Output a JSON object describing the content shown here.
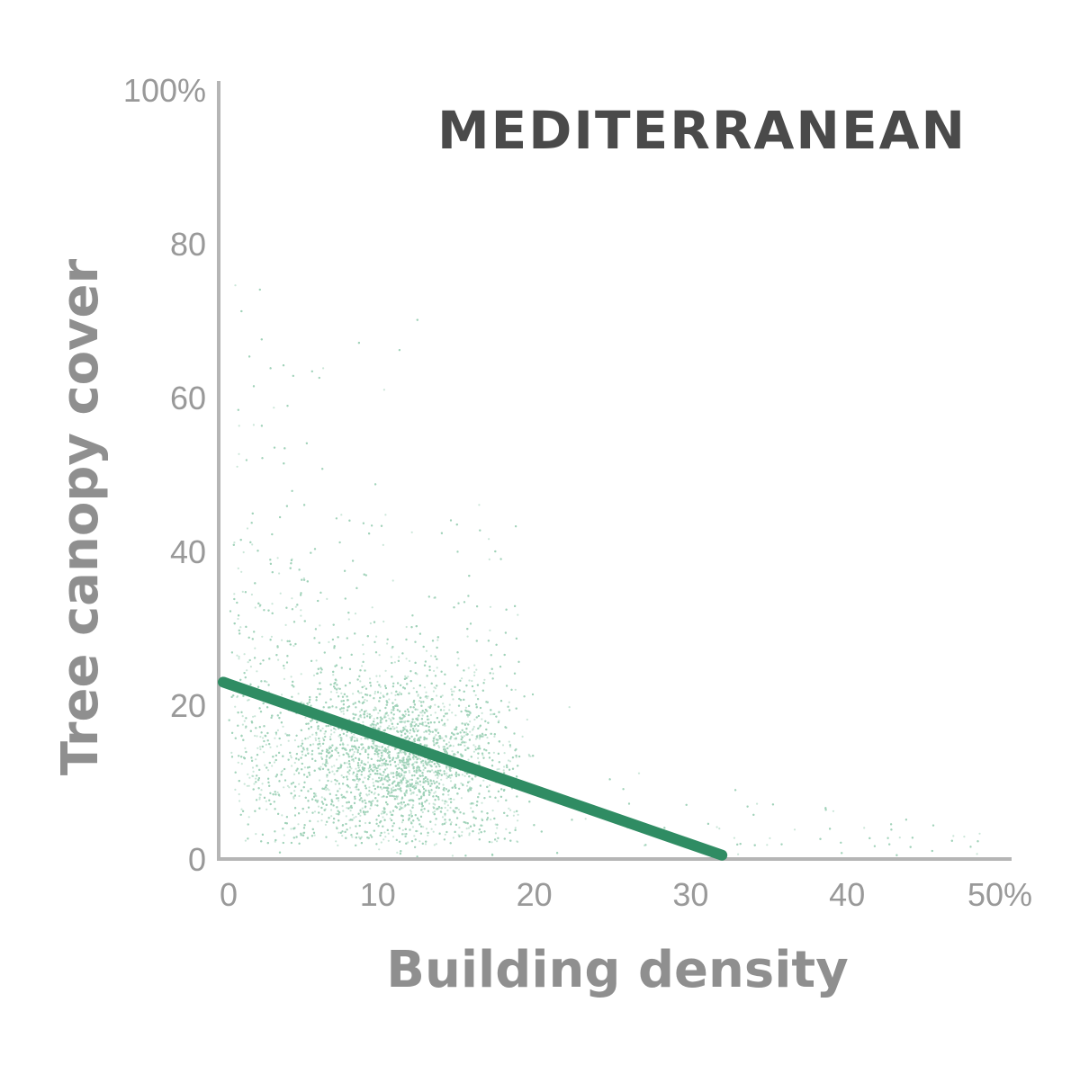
{
  "chart_data": {
    "type": "scatter",
    "title": "MEDITERRANEAN",
    "xlabel": "Building density",
    "ylabel": "Tree canopy cover",
    "xlim": [
      0,
      50
    ],
    "ylim": [
      0,
      100
    ],
    "x_ticks": [
      "0",
      "10",
      "20",
      "30",
      "40",
      "50%"
    ],
    "y_ticks": [
      "0",
      "20",
      "40",
      "60",
      "80",
      "100%"
    ],
    "x_tick_values": [
      0,
      10,
      20,
      30,
      40,
      50
    ],
    "y_tick_values": [
      0,
      20,
      40,
      60,
      80,
      100
    ],
    "grid": false,
    "point_color": "#9fd1b8",
    "trend_color": "#2f8c63",
    "axis_color": "#b5b5b5",
    "trend_line": {
      "x": [
        0,
        32
      ],
      "y": [
        23,
        0.5
      ]
    },
    "scatter_distribution": {
      "points": 9000,
      "center_x": 11,
      "center_y": 12,
      "x_range": [
        0,
        49
      ],
      "y_range": [
        0,
        90
      ]
    }
  }
}
